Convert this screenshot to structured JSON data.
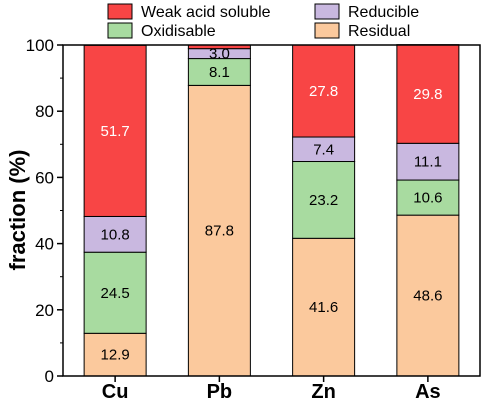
{
  "chart_data": {
    "type": "bar",
    "stacked": true,
    "categories": [
      "Cu",
      "Pb",
      "Zn",
      "As"
    ],
    "ylabel": "fraction (%)",
    "xlabel": "",
    "ylim": [
      0,
      100
    ],
    "yticks": [
      0,
      20,
      40,
      60,
      80,
      100
    ],
    "series": [
      {
        "name": "Residual",
        "color": "#FBC99D",
        "values": [
          12.9,
          87.8,
          41.6,
          48.6
        ],
        "labels": [
          "12.9",
          "87.8",
          "41.6",
          "48.6"
        ],
        "label_colors": [
          "#000000",
          "#000000",
          "#000000",
          "#000000"
        ]
      },
      {
        "name": "Oxidisable",
        "color": "#A8DBA0",
        "values": [
          24.5,
          8.1,
          23.2,
          10.6
        ],
        "labels": [
          "24.5",
          "8.1",
          "23.2",
          "10.6"
        ],
        "label_colors": [
          "#000000",
          "#000000",
          "#000000",
          "#000000"
        ]
      },
      {
        "name": "Reducible",
        "color": "#C9B8E0",
        "values": [
          10.8,
          3.0,
          7.4,
          11.1
        ],
        "labels": [
          "10.8",
          "3.0",
          "7.4",
          "11.1"
        ],
        "label_colors": [
          "#000000",
          "#000000",
          "#000000",
          "#000000"
        ]
      },
      {
        "name": "Weak acid soluble",
        "color": "#F84545",
        "values": [
          51.7,
          1.1,
          27.8,
          29.8
        ],
        "labels": [
          "51.7",
          "",
          "27.8",
          "29.8"
        ],
        "label_colors": [
          "#ffffff",
          "#ffffff",
          "#ffffff",
          "#ffffff"
        ]
      }
    ],
    "legend": {
      "placement": "top",
      "order": [
        "Weak acid soluble",
        "Reducible",
        "Oxidisable",
        "Residual"
      ]
    },
    "grid": false
  }
}
